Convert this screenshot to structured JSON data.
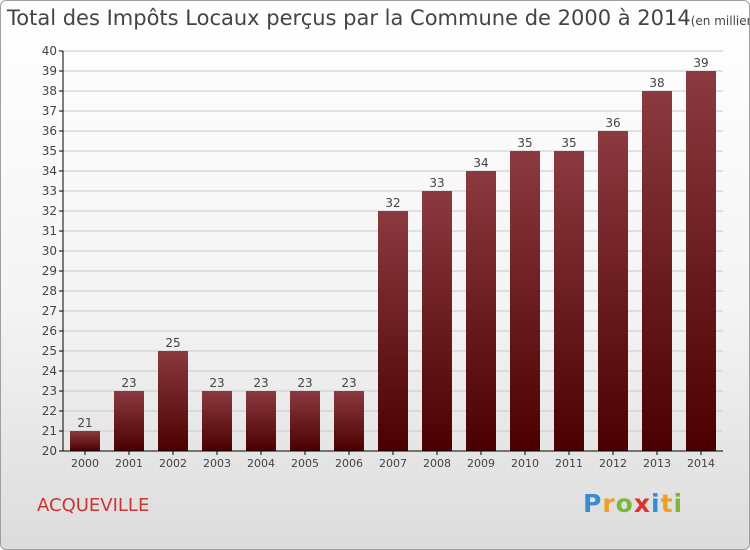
{
  "title": {
    "main": "Total des Impôts Locaux perçus par la Commune de 2000 à 2014",
    "unit": "(en milliers d'€)"
  },
  "commune": "ACQUEVILLE",
  "brand": {
    "name": "Proxiti",
    "letters": [
      {
        "ch": "P",
        "color": "#3a8ad4"
      },
      {
        "ch": "r",
        "color": "#f0a020"
      },
      {
        "ch": "o",
        "color": "#7ab83a"
      },
      {
        "ch": "x",
        "color": "#e03030"
      },
      {
        "ch": "i",
        "color": "#3a8ad4"
      },
      {
        "ch": "t",
        "color": "#f0a020"
      },
      {
        "ch": "i",
        "color": "#7ab83a"
      }
    ]
  },
  "colors": {
    "bar_top": "#8b3a40",
    "bar_bottom": "#4a0000",
    "axis": "#000000",
    "grid": "#c8c8c8",
    "text": "#444444"
  },
  "chart_data": {
    "type": "bar",
    "title": "Total des Impôts Locaux perçus par la Commune de 2000 à 2014",
    "xlabel": "",
    "ylabel": "",
    "grid": true,
    "ylim": [
      20,
      40
    ],
    "yticks": [
      20,
      21,
      22,
      23,
      24,
      25,
      26,
      27,
      28,
      29,
      30,
      31,
      32,
      33,
      34,
      35,
      36,
      37,
      38,
      39,
      40
    ],
    "categories": [
      "2000",
      "2001",
      "2002",
      "2003",
      "2004",
      "2005",
      "2006",
      "2007",
      "2008",
      "2009",
      "2010",
      "2011",
      "2012",
      "2013",
      "2014"
    ],
    "values": [
      21,
      23,
      25,
      23,
      23,
      23,
      23,
      32,
      33,
      34,
      35,
      35,
      36,
      38,
      39
    ]
  }
}
